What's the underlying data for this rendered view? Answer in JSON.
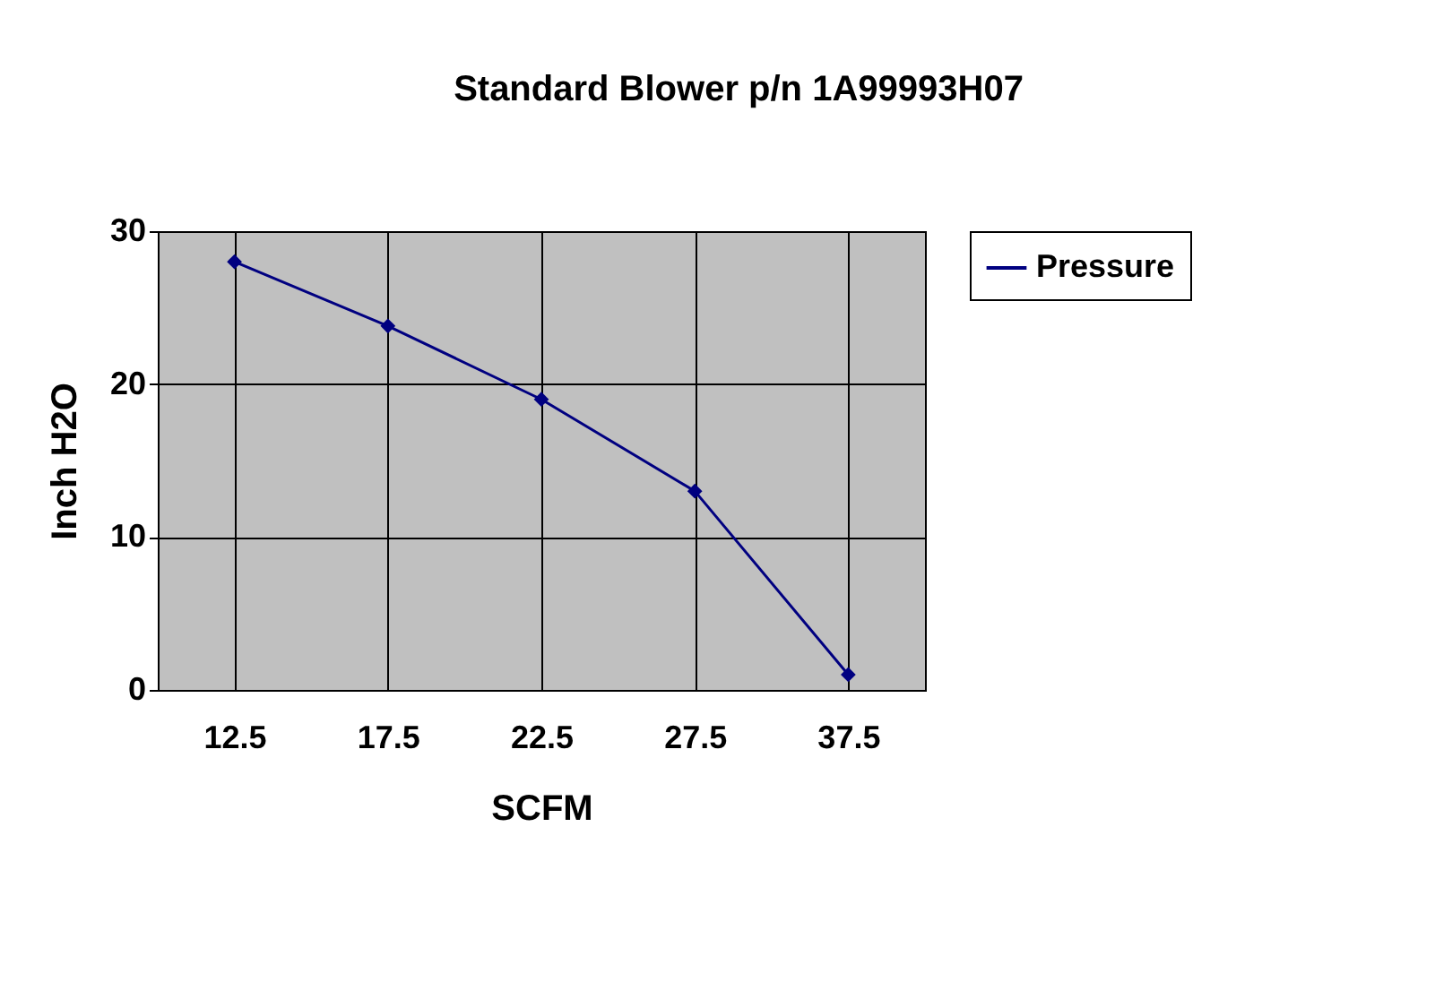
{
  "chart_data": {
    "type": "line",
    "title": "Standard Blower p/n 1A99993H07",
    "xlabel": "SCFM",
    "ylabel": "Inch H2O",
    "categories": [
      "12.5",
      "17.5",
      "22.5",
      "27.5",
      "37.5"
    ],
    "series": [
      {
        "name": "Pressure",
        "color": "#000080",
        "values": [
          28,
          23.8,
          19,
          13,
          1
        ]
      }
    ],
    "ylim": [
      0,
      30
    ],
    "yticks": [
      0,
      10,
      20,
      30
    ],
    "grid": true,
    "legend": "right",
    "marker": "diamond",
    "line_style": "solid"
  }
}
